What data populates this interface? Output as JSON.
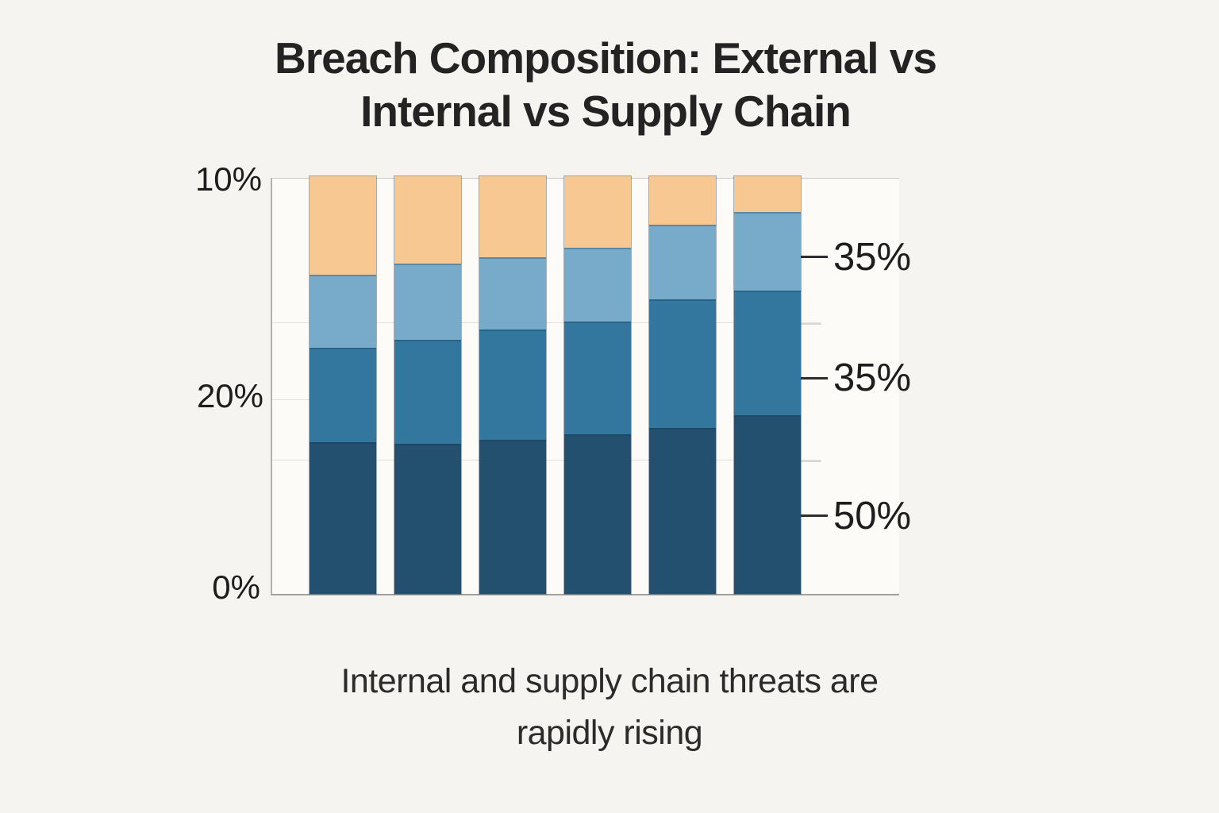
{
  "title": {
    "line1": "Breach Composition: External vs",
    "line2": "Internal vs Supply Chain"
  },
  "subtitle": {
    "line1": "Internal and supply chain threats are",
    "line2": "rapidly rising"
  },
  "axes": {
    "left_labels": [
      "10%",
      "20%",
      "0%"
    ],
    "right_labels": [
      "35%",
      "35%",
      "50%"
    ]
  },
  "colors": {
    "background": "#f6f4f1",
    "plot_background": "#fcfbf8",
    "dark_navy": "#24506f",
    "medium_blue": "#33779f",
    "light_blue": "#78aac9",
    "orange": "#f8c893",
    "axis_line": "#a3a19d",
    "gridline": "#e2e0dc",
    "tick_dark": "#2e2e2e"
  },
  "chart_data": {
    "type": "bar",
    "stacked": true,
    "orientation": "vertical",
    "title": "Breach Composition: External vs Internal vs Supply Chain",
    "subtitle": "Internal and supply chain threats are rapidly rising",
    "categories": [
      "",
      "",
      "",
      "",
      "",
      ""
    ],
    "x_axis_labels": "none",
    "legend": "none",
    "grid": "horizontal",
    "y_axis_left_tick_labels": [
      "10%",
      "20%",
      "0%"
    ],
    "y_axis_right_tick_labels": [
      "35%",
      "35%",
      "50%"
    ],
    "units": "percent of bar height (each bar totals 100%)",
    "series": [
      {
        "name": "dark-navy-bottom-segment",
        "color": "#24506f",
        "values": [
          36.3,
          35.9,
          36.9,
          38.2,
          39.7,
          42.8
        ]
      },
      {
        "name": "medium-blue-segment",
        "color": "#33779f",
        "values": [
          22.6,
          24.9,
          26.4,
          27.0,
          30.8,
          29.8
        ]
      },
      {
        "name": "light-blue-segment",
        "color": "#78aac9",
        "values": [
          17.5,
          18.3,
          17.3,
          17.7,
          17.9,
          18.8
        ]
      },
      {
        "name": "orange-top-segment",
        "color": "#f8c893",
        "values": [
          23.6,
          20.9,
          19.4,
          17.1,
          11.6,
          8.6
        ]
      }
    ]
  }
}
